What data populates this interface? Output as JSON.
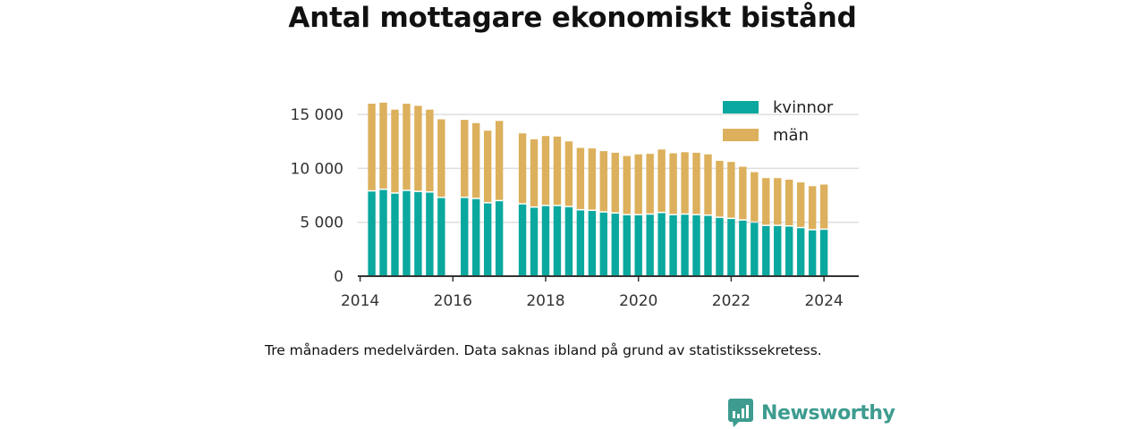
{
  "title": "Antal mottagare ekonomiskt bistånd",
  "caption": "Tre månaders medelvärden. Data saknas ibland på grund av statistikssekretess.",
  "brand": {
    "name": "Newsworthy",
    "color": "#3d9c8f"
  },
  "chart_data": {
    "type": "bar",
    "stacked": true,
    "title": "Antal mottagare ekonomiskt bistånd",
    "xlabel": "",
    "ylabel": "",
    "grid": true,
    "legend_position": "top-right",
    "ylim": [
      0,
      16500
    ],
    "yticks": [
      0,
      5000,
      10000,
      15000
    ],
    "ytick_labels": [
      "0",
      "5 000",
      "10 000",
      "15 000"
    ],
    "xlim": [
      2013.95,
      2024.75
    ],
    "xticks": [
      2014,
      2016,
      2018,
      2020,
      2022,
      2024
    ],
    "xtick_labels": [
      "2014",
      "2016",
      "2018",
      "2020",
      "2022",
      "2024"
    ],
    "x": [
      2014.25,
      2014.5,
      2014.75,
      2015.0,
      2015.25,
      2015.5,
      2015.75,
      2016.25,
      2016.5,
      2016.75,
      2017.0,
      2017.5,
      2017.75,
      2018.0,
      2018.25,
      2018.5,
      2018.75,
      2019.0,
      2019.25,
      2019.5,
      2019.75,
      2020.0,
      2020.25,
      2020.5,
      2020.75,
      2021.0,
      2021.25,
      2021.5,
      2021.75,
      2022.0,
      2022.25,
      2022.5,
      2022.75,
      2023.0,
      2023.25,
      2023.5,
      2023.75,
      2024.0
    ],
    "series": [
      {
        "name": "kvinnor",
        "color": "#0aa89e",
        "values": [
          7850,
          8000,
          7650,
          7900,
          7800,
          7750,
          7250,
          7250,
          7150,
          6750,
          6950,
          6650,
          6350,
          6500,
          6500,
          6400,
          6100,
          6050,
          5900,
          5800,
          5650,
          5650,
          5700,
          5850,
          5650,
          5700,
          5650,
          5600,
          5400,
          5300,
          5150,
          4950,
          4650,
          4650,
          4600,
          4450,
          4250,
          4300
        ]
      },
      {
        "name": "män",
        "color": "#dcb05c",
        "values": [
          8150,
          8100,
          7800,
          8100,
          8000,
          7700,
          7300,
          7250,
          7050,
          6750,
          7450,
          6600,
          6350,
          6500,
          6450,
          6100,
          5800,
          5800,
          5700,
          5650,
          5500,
          5650,
          5650,
          5900,
          5750,
          5800,
          5800,
          5700,
          5300,
          5300,
          5000,
          4700,
          4450,
          4450,
          4350,
          4250,
          4100,
          4200
        ]
      }
    ]
  }
}
